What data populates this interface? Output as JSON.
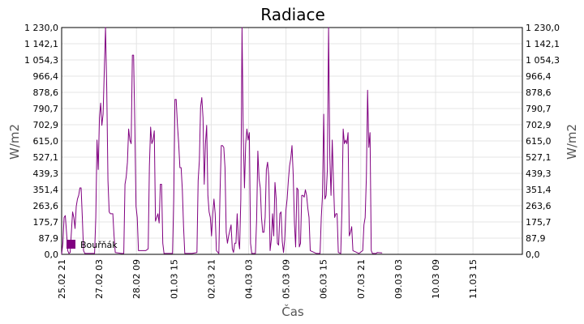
{
  "chart_data": {
    "type": "line",
    "title": "Radiace",
    "xlabel": "Čas",
    "ylabel_left": "W/m2",
    "ylabel_right": "W/m2",
    "y_ticks": [
      "0,0",
      "87,9",
      "175,7",
      "263,6",
      "351,4",
      "439,3",
      "527,1",
      "615,0",
      "702,9",
      "790,7",
      "878,6",
      "966,4",
      "1 054,3",
      "1 142,1",
      "1 230,0"
    ],
    "ylim": [
      0,
      1230
    ],
    "x_ticks": [
      "25.02 21",
      "27.02 03",
      "28.02 09",
      "01.03 15",
      "02.03 21",
      "04.03 03",
      "05.03 09",
      "06.03 15",
      "07.03 21",
      "09.03 03",
      "10.03 09",
      "11.03 15"
    ],
    "xlim_hours": [
      21,
      399
    ],
    "grid": true,
    "legend_position": "bottom-left",
    "series": [
      {
        "name": "Bouřňák",
        "color": "#800080",
        "points": [
          [
            21,
            0
          ],
          [
            22,
            60
          ],
          [
            23,
            200
          ],
          [
            24,
            210
          ],
          [
            25,
            120
          ],
          [
            26,
            20
          ],
          [
            27,
            5
          ],
          [
            28,
            10
          ],
          [
            29,
            120
          ],
          [
            30,
            230
          ],
          [
            31,
            200
          ],
          [
            32,
            140
          ],
          [
            33,
            260
          ],
          [
            34,
            300
          ],
          [
            35,
            320
          ],
          [
            36,
            360
          ],
          [
            37,
            360
          ],
          [
            38,
            200
          ],
          [
            39,
            20
          ],
          [
            40,
            5
          ],
          [
            45,
            5
          ],
          [
            48,
            5
          ],
          [
            49,
            200
          ],
          [
            50,
            620
          ],
          [
            51,
            460
          ],
          [
            52,
            740
          ],
          [
            53,
            820
          ],
          [
            54,
            700
          ],
          [
            55,
            760
          ],
          [
            56,
            1000
          ],
          [
            57,
            1230
          ],
          [
            58,
            900
          ],
          [
            59,
            400
          ],
          [
            60,
            230
          ],
          [
            61,
            220
          ],
          [
            62,
            220
          ],
          [
            63,
            220
          ],
          [
            64,
            100
          ],
          [
            65,
            10
          ],
          [
            70,
            5
          ],
          [
            72,
            5
          ],
          [
            73,
            380
          ],
          [
            74,
            420
          ],
          [
            75,
            500
          ],
          [
            76,
            680
          ],
          [
            77,
            620
          ],
          [
            78,
            600
          ],
          [
            79,
            1080
          ],
          [
            80,
            1080
          ],
          [
            81,
            700
          ],
          [
            82,
            260
          ],
          [
            83,
            200
          ],
          [
            84,
            20
          ],
          [
            90,
            20
          ],
          [
            92,
            30
          ],
          [
            93,
            480
          ],
          [
            94,
            690
          ],
          [
            95,
            600
          ],
          [
            96,
            620
          ],
          [
            97,
            670
          ],
          [
            98,
            180
          ],
          [
            99,
            200
          ],
          [
            100,
            220
          ],
          [
            101,
            170
          ],
          [
            102,
            380
          ],
          [
            103,
            380
          ],
          [
            104,
            60
          ],
          [
            105,
            5
          ],
          [
            112,
            5
          ],
          [
            113,
            300
          ],
          [
            114,
            840
          ],
          [
            115,
            840
          ],
          [
            116,
            700
          ],
          [
            117,
            600
          ],
          [
            118,
            470
          ],
          [
            119,
            470
          ],
          [
            120,
            350
          ],
          [
            121,
            150
          ],
          [
            122,
            5
          ],
          [
            128,
            5
          ],
          [
            132,
            10
          ],
          [
            133,
            400
          ],
          [
            134,
            510
          ],
          [
            135,
            800
          ],
          [
            136,
            850
          ],
          [
            137,
            740
          ],
          [
            138,
            380
          ],
          [
            139,
            600
          ],
          [
            140,
            700
          ],
          [
            141,
            320
          ],
          [
            142,
            230
          ],
          [
            143,
            200
          ],
          [
            144,
            100
          ],
          [
            145,
            220
          ],
          [
            146,
            300
          ],
          [
            147,
            220
          ],
          [
            148,
            20
          ],
          [
            150,
            5
          ],
          [
            151,
            340
          ],
          [
            152,
            590
          ],
          [
            153,
            590
          ],
          [
            154,
            580
          ],
          [
            155,
            470
          ],
          [
            156,
            120
          ],
          [
            157,
            60
          ],
          [
            158,
            100
          ],
          [
            159,
            130
          ],
          [
            160,
            160
          ],
          [
            161,
            30
          ],
          [
            162,
            10
          ],
          [
            163,
            60
          ],
          [
            164,
            60
          ],
          [
            165,
            220
          ],
          [
            166,
            80
          ],
          [
            167,
            30
          ],
          [
            168,
            300
          ],
          [
            169,
            1230
          ],
          [
            170,
            650
          ],
          [
            171,
            360
          ],
          [
            172,
            600
          ],
          [
            173,
            680
          ],
          [
            174,
            620
          ],
          [
            175,
            660
          ],
          [
            176,
            60
          ],
          [
            177,
            5
          ],
          [
            180,
            5
          ],
          [
            181,
            190
          ],
          [
            182,
            560
          ],
          [
            183,
            410
          ],
          [
            184,
            360
          ],
          [
            185,
            200
          ],
          [
            186,
            120
          ],
          [
            187,
            120
          ],
          [
            188,
            200
          ],
          [
            189,
            460
          ],
          [
            190,
            500
          ],
          [
            191,
            420
          ],
          [
            192,
            20
          ],
          [
            193,
            80
          ],
          [
            194,
            220
          ],
          [
            195,
            100
          ],
          [
            196,
            390
          ],
          [
            197,
            300
          ],
          [
            198,
            60
          ],
          [
            199,
            50
          ],
          [
            200,
            220
          ],
          [
            201,
            230
          ],
          [
            202,
            70
          ],
          [
            203,
            10
          ],
          [
            204,
            80
          ],
          [
            205,
            240
          ],
          [
            206,
            300
          ],
          [
            207,
            400
          ],
          [
            208,
            480
          ],
          [
            209,
            520
          ],
          [
            210,
            590
          ],
          [
            211,
            430
          ],
          [
            212,
            170
          ],
          [
            213,
            40
          ],
          [
            214,
            360
          ],
          [
            215,
            350
          ],
          [
            216,
            40
          ],
          [
            217,
            60
          ],
          [
            218,
            320
          ],
          [
            219,
            320
          ],
          [
            220,
            310
          ],
          [
            221,
            350
          ],
          [
            222,
            320
          ],
          [
            223,
            250
          ],
          [
            224,
            200
          ],
          [
            225,
            20
          ],
          [
            230,
            5
          ],
          [
            233,
            5
          ],
          [
            234,
            200
          ],
          [
            235,
            320
          ],
          [
            236,
            760
          ],
          [
            237,
            300
          ],
          [
            238,
            320
          ],
          [
            239,
            460
          ],
          [
            240,
            1230
          ],
          [
            241,
            530
          ],
          [
            242,
            320
          ],
          [
            243,
            620
          ],
          [
            244,
            400
          ],
          [
            245,
            200
          ],
          [
            246,
            220
          ],
          [
            247,
            220
          ],
          [
            248,
            10
          ],
          [
            250,
            5
          ],
          [
            251,
            250
          ],
          [
            252,
            680
          ],
          [
            253,
            600
          ],
          [
            254,
            620
          ],
          [
            255,
            600
          ],
          [
            256,
            660
          ],
          [
            257,
            100
          ],
          [
            258,
            120
          ],
          [
            259,
            150
          ],
          [
            260,
            20
          ],
          [
            265,
            5
          ],
          [
            268,
            20
          ],
          [
            269,
            160
          ],
          [
            270,
            200
          ],
          [
            271,
            420
          ],
          [
            272,
            890
          ],
          [
            273,
            580
          ],
          [
            274,
            660
          ],
          [
            275,
            20
          ],
          [
            276,
            5
          ],
          [
            279,
            5
          ],
          [
            280,
            10
          ],
          [
            284,
            8
          ]
        ]
      }
    ]
  }
}
